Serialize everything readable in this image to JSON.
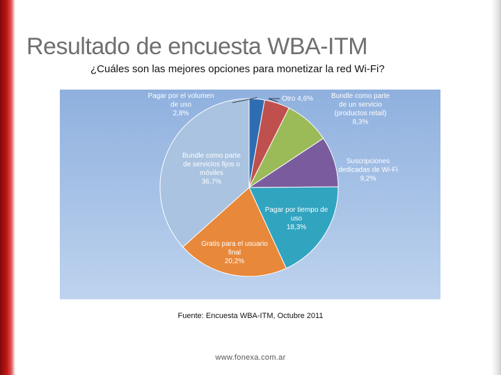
{
  "slide": {
    "title": "Resultado de encuesta WBA-ITM",
    "subtitle": "¿Cuáles son las mejores opciones para monetizar la red Wi-Fi?",
    "source": "Fuente: Encuesta WBA-ITM, Octubre 2011",
    "footer": "www.fonexa.com.ar"
  },
  "chart_data": {
    "type": "pie",
    "title": "",
    "slices": [
      {
        "label": [
          "Pagar por el volumen",
          "de uso"
        ],
        "value": 2.8,
        "display": "2,8%",
        "color": "#2f6db2"
      },
      {
        "label": [
          "Otro"
        ],
        "value": 4.6,
        "display": "4,6%",
        "color": "#c0504d"
      },
      {
        "label": [
          "Bundle como parte",
          "de un servicio",
          "(productos retail)"
        ],
        "value": 8.3,
        "display": "8,3%",
        "color": "#9bbb59"
      },
      {
        "label": [
          "Suscripciones",
          "dedicadas de Wi-Fi"
        ],
        "value": 9.2,
        "display": "9,2%",
        "color": "#7a5b9e"
      },
      {
        "label": [
          "Pagar por tiempo de",
          "uso"
        ],
        "value": 18.3,
        "display": "18,3%",
        "color": "#31a4c0"
      },
      {
        "label": [
          "Gratis para el usuario",
          "final"
        ],
        "value": 20.2,
        "display": "20,2%",
        "color": "#e8883a"
      },
      {
        "label": [
          "Bundle como parte",
          "de servicios fijos o",
          "móviles"
        ],
        "value": 36.7,
        "display": "36,7%",
        "color": "#a9c3e0"
      }
    ],
    "background_color": "#a6c2e8"
  }
}
